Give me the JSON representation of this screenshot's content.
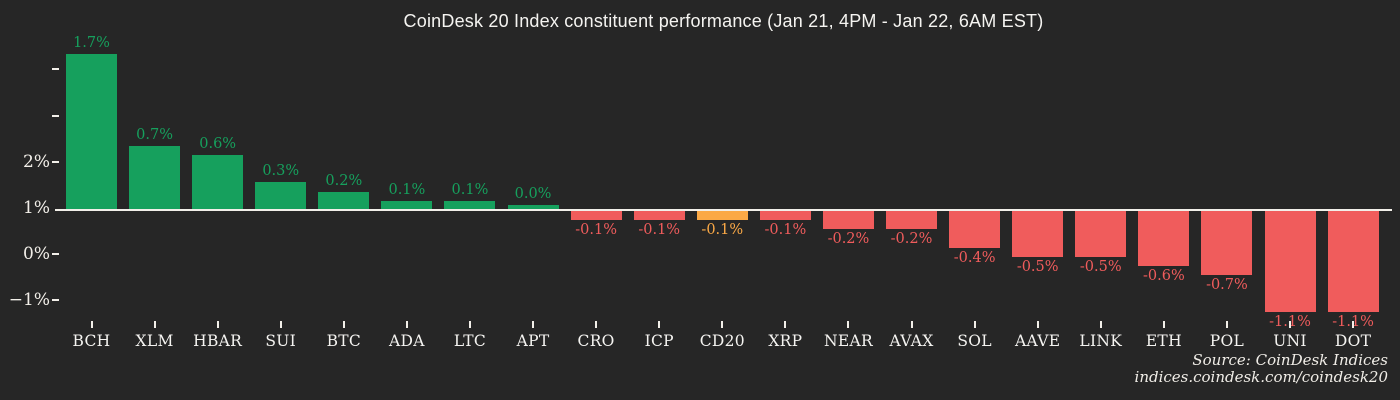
{
  "title": "CoinDesk 20 Index constituent performance (Jan 21, 4PM - Jan 22, 6AM EST)",
  "source": {
    "line1": "Source: CoinDesk Indices",
    "line2": "indices.coindesk.com/coindesk20"
  },
  "colors": {
    "background": "#262626",
    "positive": "#16a05d",
    "negative": "#f05c5c",
    "index_highlight": "#fba946",
    "baseline": "#f2efe9",
    "axis_text": "#f2efe9"
  },
  "chart_data": {
    "type": "bar",
    "title": "CoinDesk 20 Index constituent performance (Jan 21, 4PM - Jan 22, 6AM EST)",
    "categories": [
      "BCH",
      "XLM",
      "HBAR",
      "SUI",
      "BTC",
      "ADA",
      "LTC",
      "APT",
      "CRO",
      "ICP",
      "CD20",
      "XRP",
      "NEAR",
      "AVAX",
      "SOL",
      "AAVE",
      "LINK",
      "ETH",
      "POL",
      "UNI",
      "DOT"
    ],
    "values": [
      1.7,
      0.7,
      0.6,
      0.3,
      0.2,
      0.1,
      0.1,
      0.0,
      -0.1,
      -0.1,
      -0.1,
      -0.1,
      -0.2,
      -0.2,
      -0.4,
      -0.5,
      -0.5,
      -0.6,
      -0.7,
      -1.1,
      -1.1
    ],
    "bar_labels": [
      "1.7%",
      "0.7%",
      "0.6%",
      "0.3%",
      "0.2%",
      "0.1%",
      "0.1%",
      "0.0%",
      "-0.1%",
      "-0.1%",
      "-0.1%",
      "-0.1%",
      "-0.2%",
      "-0.2%",
      "-0.4%",
      "-0.5%",
      "-0.5%",
      "-0.6%",
      "-0.7%",
      "-1.1%",
      "-1.1%"
    ],
    "highlight_category": "CD20",
    "y_tick_labels": [
      "",
      "",
      "2%",
      "1%",
      "0%",
      "−1%"
    ],
    "xlabel": "",
    "ylabel": "",
    "grid": false,
    "legend": false
  }
}
